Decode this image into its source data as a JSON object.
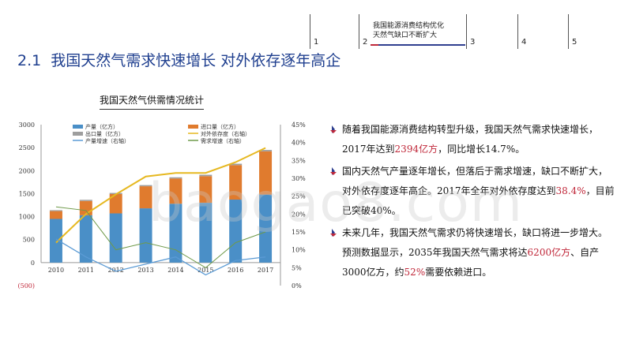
{
  "nav": {
    "items": [
      {
        "num": "1"
      },
      {
        "num": "2",
        "text_line1": "我国能源消费结构优化",
        "text_line2": "天然气缺口不断扩大",
        "active": true
      },
      {
        "num": "3"
      },
      {
        "num": "4"
      },
      {
        "num": "5"
      }
    ]
  },
  "title": {
    "num": "2.1",
    "text": "我国天然气需求快速增长  对外依存逐年高企"
  },
  "chart": {
    "title": "我国天然气供需情况统计"
  },
  "chart_data": {
    "type": "bar",
    "categories": [
      "2010",
      "2011",
      "2012",
      "2013",
      "2014",
      "2015",
      "2016",
      "2017"
    ],
    "series": [
      {
        "name": "产量（亿方）",
        "kind": "bar",
        "values": [
          950,
          1030,
          1070,
          1180,
          1280,
          1300,
          1370,
          1480
        ]
      },
      {
        "name": "进口量（亿方）",
        "kind": "bar-stacked",
        "values": [
          170,
          310,
          420,
          480,
          550,
          580,
          750,
          940
        ]
      },
      {
        "name": "出口量（亿方）",
        "kind": "bar-stacked",
        "values": [
          20,
          25,
          25,
          25,
          25,
          30,
          30,
          30
        ]
      },
      {
        "name": "对外依存度（右轴）",
        "kind": "line-right",
        "values": [
          0.12,
          0.2,
          0.255,
          0.305,
          0.315,
          0.315,
          0.345,
          0.385
        ]
      },
      {
        "name": "产量增速（右轴）",
        "kind": "line-right",
        "values": [
          0.13,
          0.08,
          0.04,
          0.06,
          0.08,
          0.03,
          0.07,
          0.08
        ]
      },
      {
        "name": "需求增速（右轴）",
        "kind": "line-right",
        "values": [
          0.22,
          0.21,
          0.1,
          0.12,
          0.1,
          0.05,
          0.12,
          0.15
        ]
      }
    ],
    "y_left": {
      "ticks": [
        "(500)",
        "0",
        "500",
        "1000",
        "1500",
        "2000",
        "2500",
        "3000"
      ],
      "range": [
        -500,
        3000
      ]
    },
    "y_right": {
      "ticks": [
        "0%",
        "5%",
        "10%",
        "15%",
        "20%",
        "25%",
        "30%",
        "35%",
        "40%",
        "45%"
      ],
      "range": [
        0,
        0.45
      ]
    },
    "colors": {
      "production": "#4a8fc7",
      "import": "#e07b2e",
      "export": "#9e9e9e",
      "dependence": "#e6b820",
      "prod_growth": "#5b9bd5",
      "demand_growth": "#6f9a4a"
    },
    "legend_position": "top"
  },
  "bullets": [
    {
      "parts": [
        "随着我国能源消费结构转型升级，我国天然气需求快速增长，2017年达到",
        "2394亿方",
        "，同比增长14.7%。"
      ]
    },
    {
      "parts": [
        "国内天然气产量逐年增长，但落后于需求增速，缺口不断扩大，对外依存度逐年高企。2017年全年对外依存度达到",
        "38.4%",
        "，目前已突破40%。"
      ]
    },
    {
      "parts": [
        "未来几年，我国天然气需求仍将快速增长，缺口将进一步增大。预测数据显示，2035年我国天然气需求将达",
        "6200亿方",
        "、自产3000亿方，约",
        "52%",
        "需要依赖进口。"
      ]
    }
  ],
  "watermark": "baogao8.com"
}
